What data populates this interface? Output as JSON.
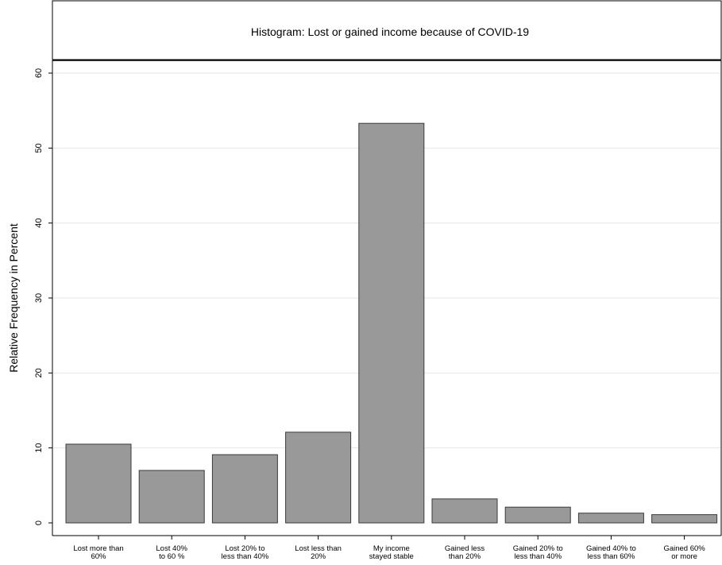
{
  "chart_data": {
    "type": "bar",
    "title": "Histogram: Lost or gained income because of COVID-19",
    "xlabel": "",
    "ylabel": "Relative Frequency in Percent",
    "ylim": [
      0,
      60
    ],
    "yticks": [
      0,
      10,
      20,
      30,
      40,
      50,
      60
    ],
    "grid": true,
    "categories": [
      [
        "Lost more than",
        "60%"
      ],
      [
        "Lost 40%",
        "to 60 %"
      ],
      [
        "Lost 20% to",
        "less than 40%"
      ],
      [
        "Lost less than",
        "20%"
      ],
      [
        "My income",
        "stayed stable"
      ],
      [
        "Gained less",
        "than 20%"
      ],
      [
        "Gained 20% to",
        "less than 40%"
      ],
      [
        "Gained 40% to",
        "less than 60%"
      ],
      [
        "Gained 60%",
        "or more"
      ]
    ],
    "values": [
      10.5,
      7.0,
      9.1,
      12.1,
      53.3,
      3.2,
      2.1,
      1.3,
      1.1
    ],
    "colors": {
      "bar_fill": "#999999",
      "bar_stroke": "#3a3a3a",
      "grid": "#e6e6e6",
      "axis": "#000000"
    }
  }
}
